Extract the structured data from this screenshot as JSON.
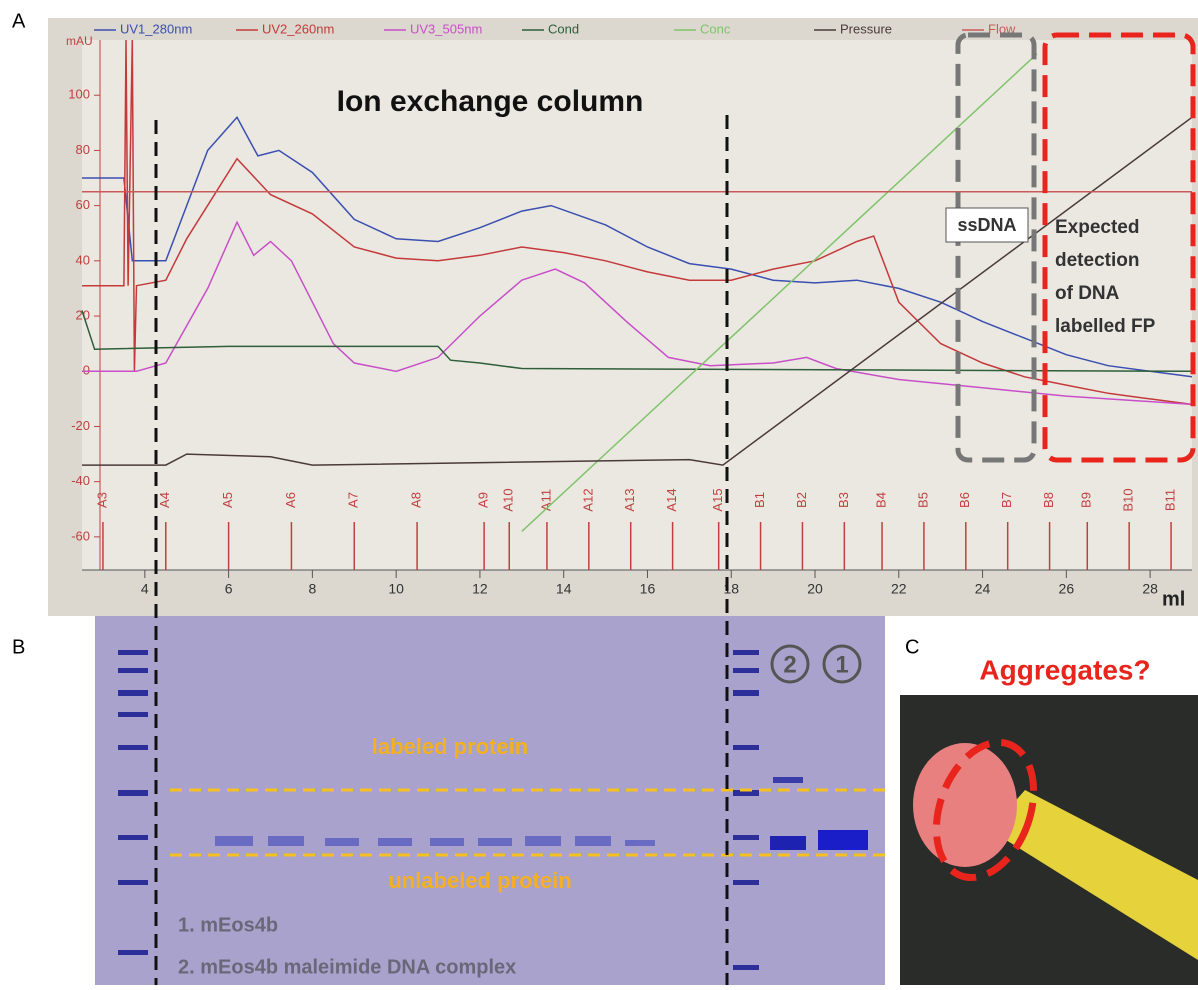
{
  "panel_labels": [
    "A",
    "B",
    "C"
  ],
  "chart_data": {
    "type": "line",
    "title": "Ion exchange column",
    "y_unit": "mAU",
    "x_unit": "ml",
    "xlim": [
      2.5,
      29
    ],
    "ylim": [
      -72,
      120
    ],
    "xticks": [
      4,
      6,
      8,
      10,
      12,
      14,
      16,
      18,
      20,
      22,
      24,
      26,
      28
    ],
    "yticks": [
      -60,
      -40,
      -20,
      0,
      20,
      40,
      60,
      80,
      100
    ],
    "series": [
      {
        "name": "UV1_280nm",
        "color": "#3a4fb0",
        "x": [
          2.5,
          3.5,
          3.7,
          4.5,
          5,
          5.5,
          6.2,
          6.7,
          7.2,
          8,
          9,
          10,
          11,
          12,
          13,
          13.7,
          15,
          16,
          17,
          18,
          19,
          20,
          21,
          22,
          23,
          24,
          25,
          26,
          27,
          28,
          29
        ],
        "values": [
          70,
          70,
          40,
          40,
          60,
          80,
          92,
          78,
          80,
          72,
          55,
          48,
          47,
          52,
          58,
          60,
          53,
          45,
          39,
          37,
          33,
          32,
          33,
          30,
          25,
          18,
          12,
          6,
          2,
          0,
          -2
        ]
      },
      {
        "name": "UV2_260nm",
        "color": "#c43a3a",
        "x": [
          2.5,
          3.5,
          3.55,
          3.6,
          3.7,
          3.75,
          3.8,
          4.5,
          5,
          6.2,
          7,
          8,
          9,
          10,
          11,
          12,
          13,
          14,
          15,
          16,
          17,
          18,
          19,
          20,
          21,
          21.4,
          22,
          23,
          24,
          25,
          26,
          27,
          28,
          29
        ],
        "values": [
          31,
          31,
          120,
          31,
          120,
          0,
          31,
          33,
          48,
          77,
          64,
          57,
          45,
          41,
          40,
          42,
          45,
          43,
          40,
          36,
          33,
          33,
          37,
          40,
          47,
          49,
          25,
          10,
          3,
          -2,
          -5,
          -8,
          -10,
          -12
        ]
      },
      {
        "name": "UV3_505nm",
        "color": "#c84fc8",
        "x": [
          2.5,
          3.8,
          4.5,
          5.5,
          6.2,
          6.6,
          7,
          7.5,
          8,
          8.5,
          9,
          10,
          11,
          12,
          13,
          13.8,
          14.5,
          15.5,
          16.5,
          17.5,
          19,
          19.8,
          20.5,
          22,
          24,
          26,
          29
        ],
        "values": [
          0,
          0,
          3,
          30,
          54,
          42,
          47,
          40,
          25,
          10,
          3,
          0,
          5,
          20,
          33,
          37,
          32,
          18,
          5,
          2,
          3,
          5,
          1,
          -3,
          -6,
          -9,
          -12
        ]
      },
      {
        "name": "Cond",
        "color": "#2e5e3a",
        "x": [
          2.5,
          2.8,
          6,
          11,
          11.3,
          12,
          13,
          29
        ],
        "values": [
          22,
          8,
          9,
          9,
          4,
          3,
          1,
          0
        ]
      },
      {
        "name": "Conc",
        "color": "#7fc46a",
        "x": [
          13,
          25.3
        ],
        "values": [
          -58,
          115
        ]
      },
      {
        "name": "Pressure",
        "color": "#4a3a3a",
        "x": [
          2.5,
          4.5,
          5,
          7,
          8,
          17,
          17.8,
          29
        ],
        "values": [
          -34,
          -34,
          -30,
          -31,
          -34,
          -32,
          -34,
          92
        ]
      },
      {
        "name": "Flow",
        "color": "#c85a5a",
        "x": [
          2.5,
          29
        ],
        "values": [
          65,
          65
        ]
      }
    ],
    "fractions": {
      "labels": [
        "A3",
        "A4",
        "A5",
        "A6",
        "A7",
        "A8",
        "A9",
        "A10",
        "A11",
        "A12",
        "A13",
        "A14",
        "A15",
        "B1",
        "B2",
        "B3",
        "B4",
        "B5",
        "B6",
        "B7",
        "B8",
        "B9",
        "B10",
        "B11"
      ],
      "x": [
        3.0,
        4.5,
        6.0,
        7.5,
        9.0,
        10.5,
        12.1,
        12.7,
        13.6,
        14.6,
        15.6,
        16.6,
        17.7,
        18.7,
        19.7,
        20.7,
        21.6,
        22.6,
        23.6,
        24.6,
        25.6,
        26.5,
        27.5,
        28.5
      ]
    },
    "annotations": {
      "ssdna": "ssDNA",
      "expected": [
        "Expected",
        "detection",
        "of DNA",
        "labelled FP"
      ]
    }
  },
  "gel": {
    "labeled": "labeled protein",
    "unlabeled": "unlabeled protein",
    "lane_marks": [
      "2",
      "1"
    ],
    "legend": [
      "1. mEos4b",
      "2. mEos4b maleimide DNA complex"
    ]
  },
  "photo": {
    "title": "Aggregates?"
  }
}
